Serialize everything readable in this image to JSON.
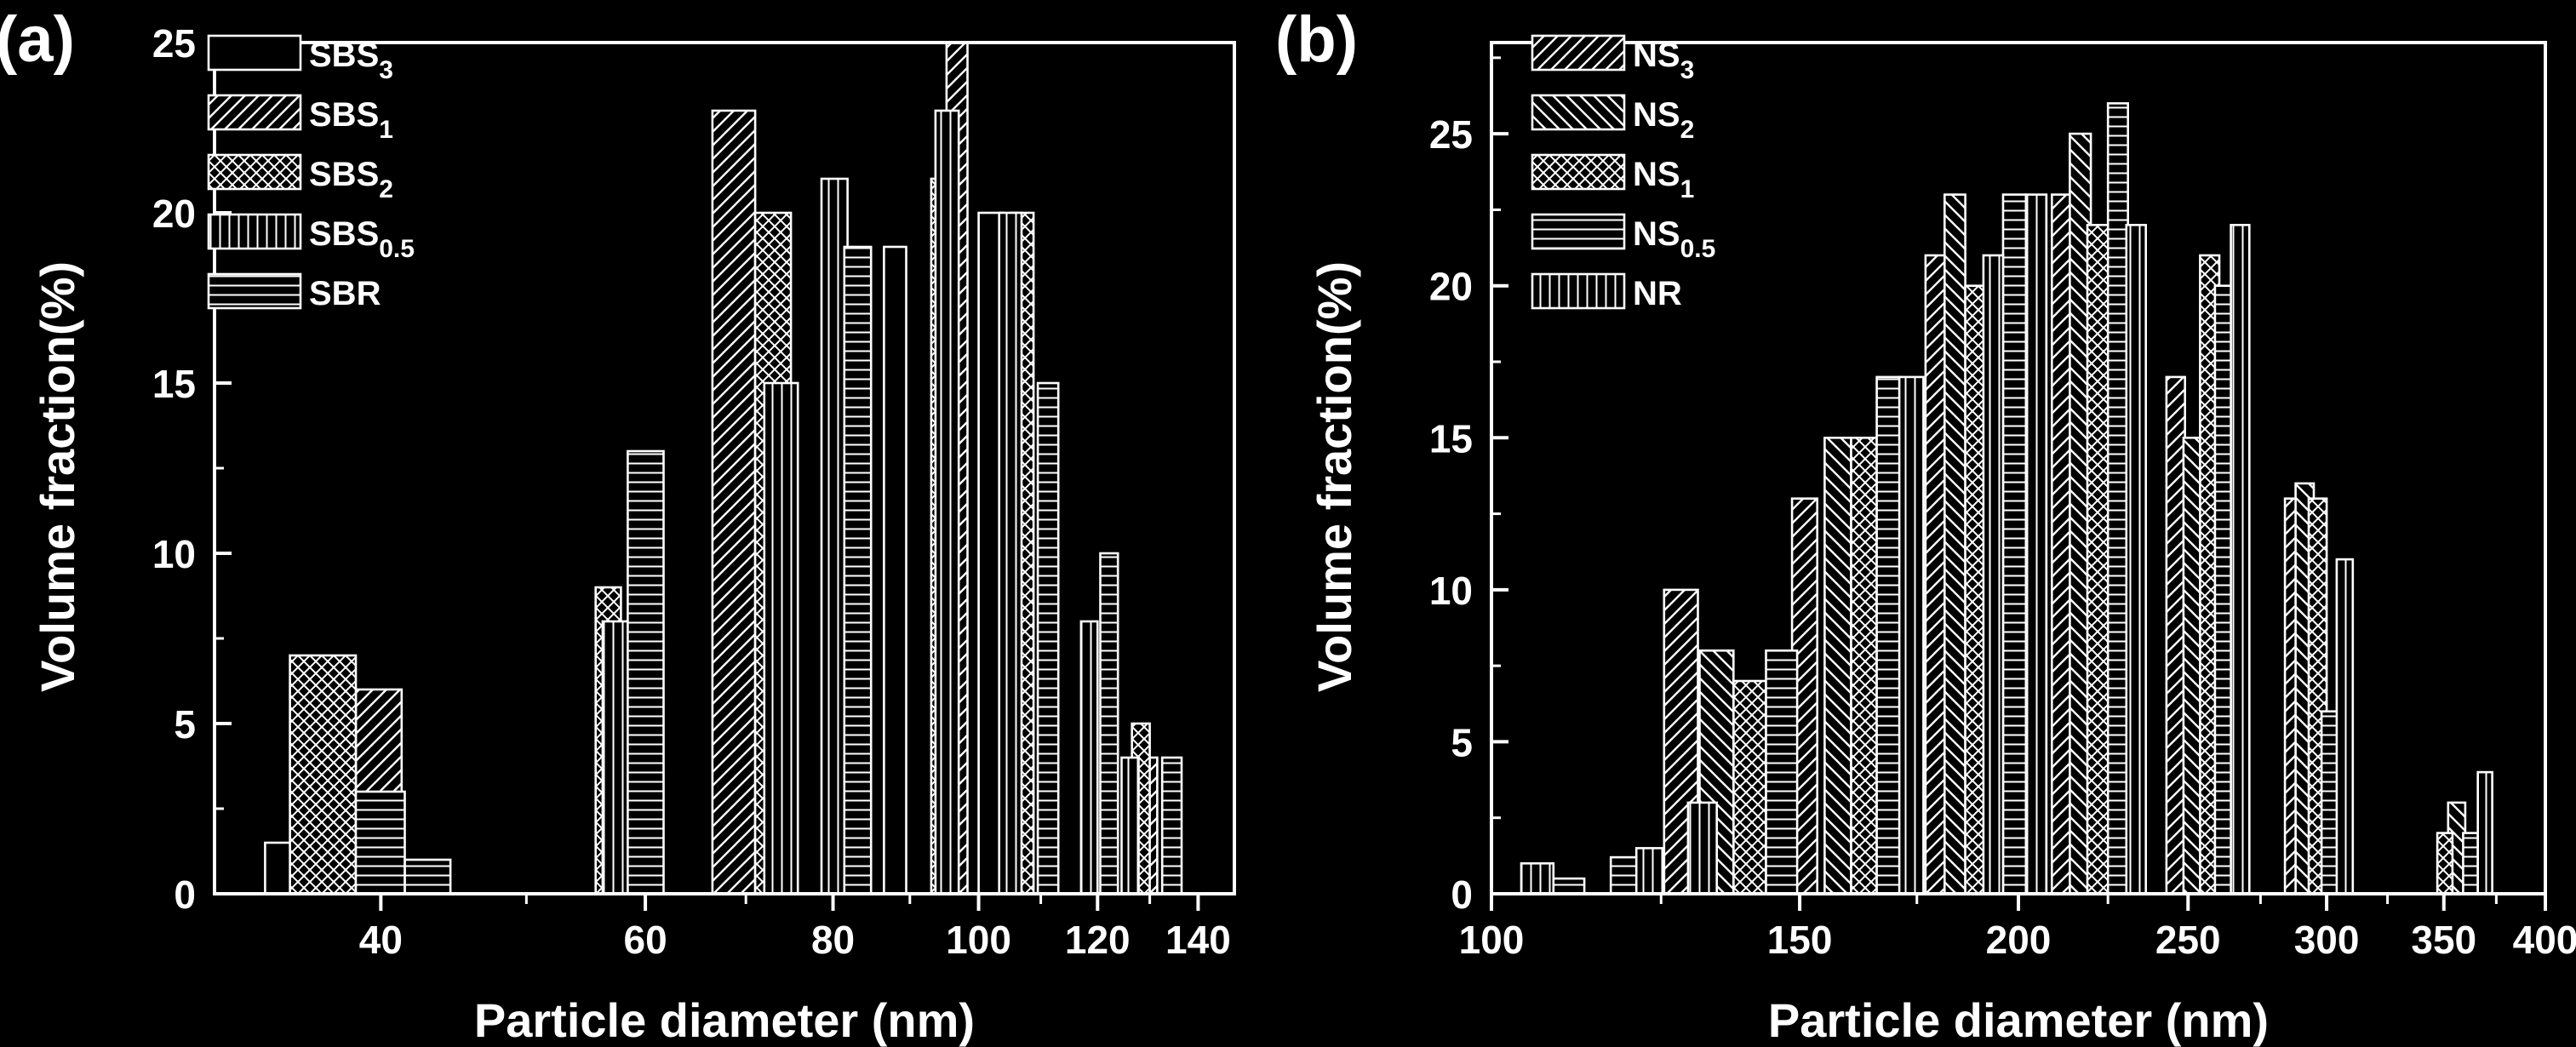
{
  "colors": {
    "background": "#000000",
    "foreground": "#ffffff"
  },
  "chart_data": [
    {
      "panel_label": "(a)",
      "type": "bar",
      "xlabel": "Particle diameter (nm)",
      "ylabel": "Volume fraction(%)",
      "xscale": "log",
      "xlim": [
        31,
        148
      ],
      "ylim": [
        0,
        25
      ],
      "xticks": [
        40,
        60,
        80,
        100,
        120,
        140
      ],
      "yticks": [
        0,
        5,
        10,
        15,
        20,
        25
      ],
      "legend_position": "top-left",
      "series": [
        {
          "name": "SBS",
          "subscript": "3",
          "pattern": "empty",
          "bars": [
            {
              "x0": 33.5,
              "x1": 37.2,
              "y": 1.5
            },
            {
              "x0": 86.5,
              "x1": 89.5,
              "y": 19
            },
            {
              "x0": 100,
              "x1": 104,
              "y": 20
            }
          ]
        },
        {
          "name": "SBS",
          "subscript": "1",
          "pattern": "diag",
          "bars": [
            {
              "x0": 38.5,
              "x1": 41.3,
              "y": 6
            },
            {
              "x0": 66.5,
              "x1": 71,
              "y": 23
            },
            {
              "x0": 95.2,
              "x1": 98.3,
              "y": 25
            },
            {
              "x0": 128,
              "x1": 131.5,
              "y": 4
            }
          ]
        },
        {
          "name": "SBS",
          "subscript": "2",
          "pattern": "cross",
          "bars": [
            {
              "x0": 34.8,
              "x1": 38.5,
              "y": 7
            },
            {
              "x0": 55.6,
              "x1": 57.8,
              "y": 9
            },
            {
              "x0": 71,
              "x1": 75,
              "y": 20
            },
            {
              "x0": 93,
              "x1": 96.2,
              "y": 21
            },
            {
              "x0": 105,
              "x1": 108.8,
              "y": 20
            },
            {
              "x0": 126.5,
              "x1": 130,
              "y": 5
            }
          ]
        },
        {
          "name": "SBS",
          "subscript": "0.5",
          "pattern": "vert",
          "bars": [
            {
              "x0": 56.2,
              "x1": 58.8,
              "y": 8
            },
            {
              "x0": 72,
              "x1": 75.8,
              "y": 15
            },
            {
              "x0": 78.6,
              "x1": 81.8,
              "y": 21
            },
            {
              "x0": 93.6,
              "x1": 97,
              "y": 23
            },
            {
              "x0": 103.2,
              "x1": 106.8,
              "y": 20
            },
            {
              "x0": 117,
              "x1": 120,
              "y": 8
            },
            {
              "x0": 124.5,
              "x1": 127.8,
              "y": 4
            }
          ]
        },
        {
          "name": "SBR",
          "subscript": "",
          "pattern": "horiz",
          "bars": [
            {
              "x0": 38.5,
              "x1": 41.5,
              "y": 3
            },
            {
              "x0": 41.5,
              "x1": 44.5,
              "y": 1
            },
            {
              "x0": 58.4,
              "x1": 61.7,
              "y": 13
            },
            {
              "x0": 81.4,
              "x1": 84.8,
              "y": 19
            },
            {
              "x0": 109.5,
              "x1": 113,
              "y": 15
            },
            {
              "x0": 120.5,
              "x1": 123.8,
              "y": 10
            },
            {
              "x0": 132.5,
              "x1": 136.5,
              "y": 4
            }
          ]
        }
      ]
    },
    {
      "panel_label": "(b)",
      "type": "bar",
      "xlabel": "Particle diameter (nm)",
      "ylabel": "Volume fraction(%)",
      "xscale": "log",
      "xlim": [
        100,
        400
      ],
      "ylim": [
        0,
        28
      ],
      "xticks": [
        100,
        150,
        200,
        250,
        300,
        350,
        400
      ],
      "yticks": [
        0,
        5,
        10,
        15,
        20,
        25
      ],
      "legend_position": "top-left",
      "series": [
        {
          "name": "NS",
          "subscript": "3",
          "pattern": "diag",
          "bars": [
            {
              "x0": 125.5,
              "x1": 131.2,
              "y": 10
            },
            {
              "x0": 148.5,
              "x1": 153.5,
              "y": 13
            },
            {
              "x0": 177,
              "x1": 182,
              "y": 21
            },
            {
              "x0": 209,
              "x1": 215,
              "y": 23
            },
            {
              "x0": 243,
              "x1": 249,
              "y": 17
            },
            {
              "x0": 284,
              "x1": 291,
              "y": 13
            }
          ]
        },
        {
          "name": "NS",
          "subscript": "2",
          "pattern": "backdiag",
          "bars": [
            {
              "x0": 131.5,
              "x1": 137.5,
              "y": 8
            },
            {
              "x0": 155,
              "x1": 160.5,
              "y": 15
            },
            {
              "x0": 181.5,
              "x1": 186.5,
              "y": 23
            },
            {
              "x0": 214,
              "x1": 220,
              "y": 25
            },
            {
              "x0": 248.5,
              "x1": 255,
              "y": 15
            },
            {
              "x0": 288,
              "x1": 295,
              "y": 13.5
            },
            {
              "x0": 352,
              "x1": 360,
              "y": 3
            }
          ]
        },
        {
          "name": "NS",
          "subscript": "1",
          "pattern": "cross",
          "bars": [
            {
              "x0": 137.5,
              "x1": 143.5,
              "y": 7
            },
            {
              "x0": 160.5,
              "x1": 166,
              "y": 15
            },
            {
              "x0": 186.5,
              "x1": 192,
              "y": 20
            },
            {
              "x0": 219,
              "x1": 225.5,
              "y": 22
            },
            {
              "x0": 254,
              "x1": 260.5,
              "y": 21
            },
            {
              "x0": 293,
              "x1": 300,
              "y": 13
            },
            {
              "x0": 347,
              "x1": 354,
              "y": 2
            }
          ]
        },
        {
          "name": "NS",
          "subscript": "0.5",
          "pattern": "horiz",
          "bars": [
            {
              "x0": 108,
              "x1": 113,
              "y": 0.5
            },
            {
              "x0": 117,
              "x1": 122,
              "y": 1.2
            },
            {
              "x0": 143.5,
              "x1": 149.5,
              "y": 8
            },
            {
              "x0": 166,
              "x1": 171.5,
              "y": 17
            },
            {
              "x0": 196,
              "x1": 202,
              "y": 23
            },
            {
              "x0": 225,
              "x1": 231,
              "y": 26
            },
            {
              "x0": 259,
              "x1": 265.5,
              "y": 20
            },
            {
              "x0": 298,
              "x1": 304.5,
              "y": 6
            },
            {
              "x0": 359,
              "x1": 366,
              "y": 2
            }
          ]
        },
        {
          "name": "NR",
          "subscript": "",
          "pattern": "vert",
          "bars": [
            {
              "x0": 104,
              "x1": 108.5,
              "y": 1
            },
            {
              "x0": 121,
              "x1": 125.5,
              "y": 1.5
            },
            {
              "x0": 129.5,
              "x1": 134.5,
              "y": 3
            },
            {
              "x0": 171,
              "x1": 176.5,
              "y": 17
            },
            {
              "x0": 191,
              "x1": 196,
              "y": 21
            },
            {
              "x0": 202,
              "x1": 207.5,
              "y": 23
            },
            {
              "x0": 230.5,
              "x1": 236.5,
              "y": 22
            },
            {
              "x0": 264.5,
              "x1": 271,
              "y": 22
            },
            {
              "x0": 304,
              "x1": 310.5,
              "y": 11
            },
            {
              "x0": 366,
              "x1": 373,
              "y": 4
            }
          ]
        }
      ]
    }
  ]
}
